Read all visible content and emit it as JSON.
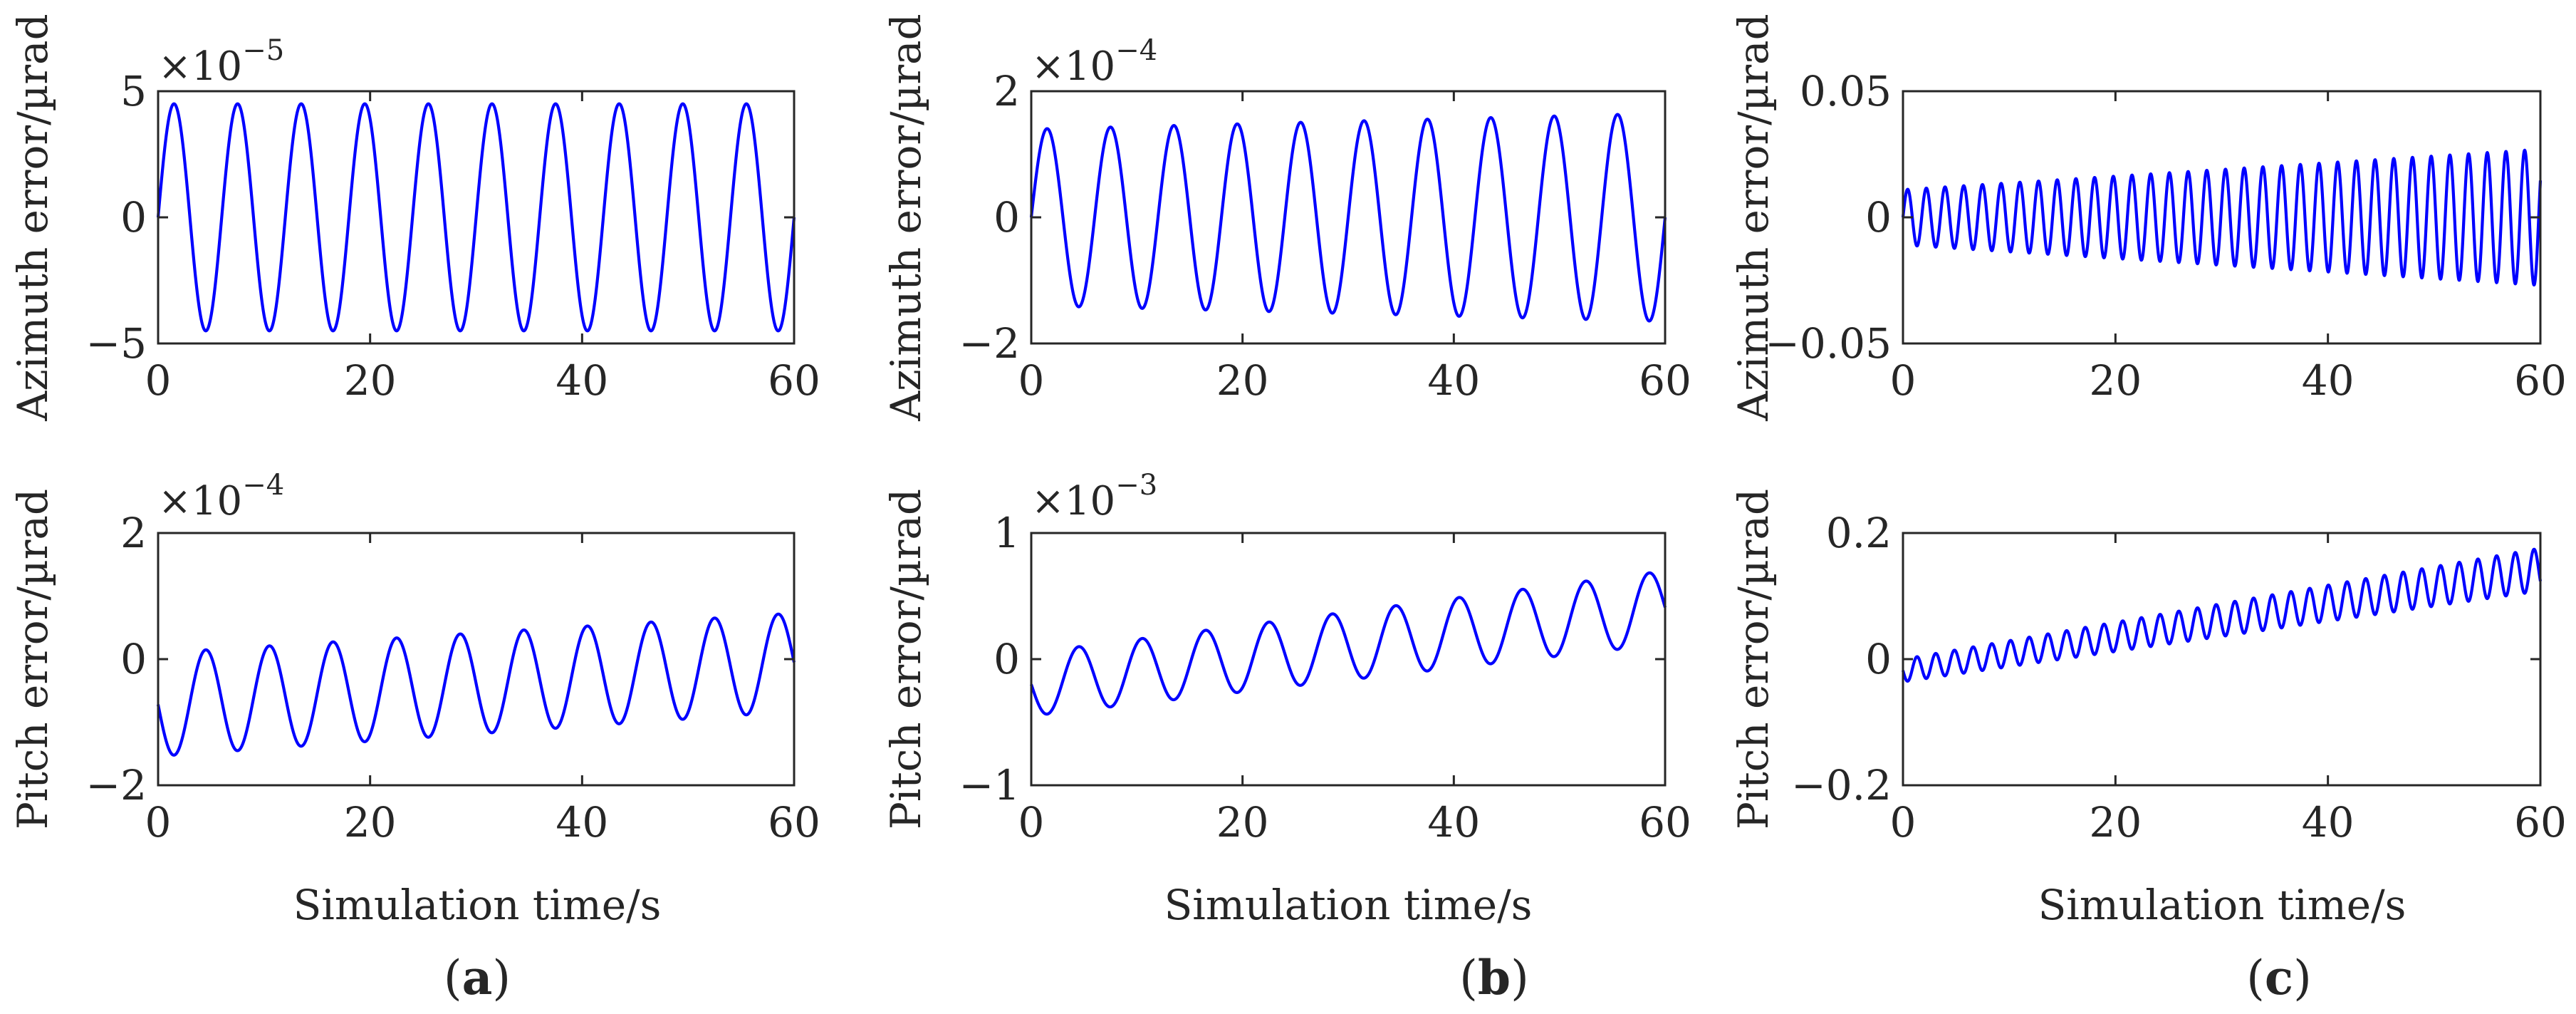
{
  "figure": {
    "xlabel": "Simulation time/s",
    "panels": [
      {
        "label": "(a)",
        "open": "(",
        "letter": "a",
        "close": ")"
      },
      {
        "label": "(b)",
        "open": "(",
        "letter": "b",
        "close": ")"
      },
      {
        "label": "(c)",
        "open": "(",
        "letter": "c",
        "close": ")"
      }
    ]
  },
  "chart_data": [
    {
      "id": "a-top",
      "type": "line",
      "panel": "a",
      "ylabel": "Azimuth error/µrad",
      "xlabel": "",
      "scale_base": "×10",
      "scale_exp": "−5",
      "xlim": [
        0,
        60
      ],
      "ylim": [
        -5,
        5
      ],
      "xticks": [
        0,
        20,
        40,
        60
      ],
      "xtick_labels": [
        "0",
        "20",
        "40",
        "60"
      ],
      "yticks": [
        -5,
        0,
        5
      ],
      "ytick_labels": [
        "−5",
        "0",
        "5"
      ],
      "series": [
        {
          "name": "error",
          "color": "#0000ff",
          "model": "sine",
          "amp_start": 4.5,
          "amp_end": 4.5,
          "offset_start": 0,
          "offset_end": 0,
          "period": 6.0,
          "phase": 0,
          "sign": 1
        }
      ]
    },
    {
      "id": "a-bottom",
      "type": "line",
      "panel": "a",
      "ylabel": "Pitch error/µrad",
      "xlabel": "Simulation time/s",
      "scale_base": "×10",
      "scale_exp": "−4",
      "xlim": [
        0,
        60
      ],
      "ylim": [
        -2,
        2
      ],
      "xticks": [
        0,
        20,
        40,
        60
      ],
      "xtick_labels": [
        "0",
        "20",
        "40",
        "60"
      ],
      "yticks": [
        -2,
        0,
        2
      ],
      "ytick_labels": [
        "−2",
        "0",
        "2"
      ],
      "series": [
        {
          "name": "error",
          "color": "#0000ff",
          "model": "sine",
          "amp_start": 0.82,
          "amp_end": 0.78,
          "offset_start": -0.72,
          "offset_end": -0.05,
          "period": 6.0,
          "phase": 0,
          "sign": -1
        }
      ]
    },
    {
      "id": "b-top",
      "type": "line",
      "panel": "b",
      "ylabel": "Azimuth error/µrad",
      "xlabel": "",
      "scale_base": "×10",
      "scale_exp": "−4",
      "xlim": [
        0,
        60
      ],
      "ylim": [
        -2,
        2
      ],
      "xticks": [
        0,
        20,
        40,
        60
      ],
      "xtick_labels": [
        "0",
        "20",
        "40",
        "60"
      ],
      "yticks": [
        -2,
        0,
        2
      ],
      "ytick_labels": [
        "−2",
        "0",
        "2"
      ],
      "series": [
        {
          "name": "error",
          "color": "#0000ff",
          "model": "sine",
          "amp_start": 1.4,
          "amp_end": 1.65,
          "offset_start": 0,
          "offset_end": 0,
          "period": 6.0,
          "phase": 0,
          "sign": 1
        }
      ]
    },
    {
      "id": "b-bottom",
      "type": "line",
      "panel": "b",
      "ylabel": "Pitch error/µrad",
      "xlabel": "Simulation time/s",
      "scale_base": "×10",
      "scale_exp": "−3",
      "xlim": [
        0,
        60
      ],
      "ylim": [
        -1,
        1
      ],
      "xticks": [
        0,
        20,
        40,
        60
      ],
      "xtick_labels": [
        "0",
        "20",
        "40",
        "60"
      ],
      "yticks": [
        -1,
        0,
        1
      ],
      "ytick_labels": [
        "−1",
        "0",
        "1"
      ],
      "series": [
        {
          "name": "error",
          "color": "#0000ff",
          "model": "sine",
          "amp_start": 0.25,
          "amp_end": 0.29,
          "offset_start": -0.2,
          "offset_end": 0.41,
          "period": 6.0,
          "phase": 0,
          "sign": -1
        }
      ]
    },
    {
      "id": "c-top",
      "type": "line",
      "panel": "c",
      "ylabel": "Azimuth error/µrad",
      "xlabel": "",
      "scale_base": "",
      "scale_exp": "",
      "xlim": [
        0,
        60
      ],
      "ylim": [
        -0.05,
        0.05
      ],
      "xticks": [
        0,
        20,
        40,
        60
      ],
      "xtick_labels": [
        "0",
        "20",
        "40",
        "60"
      ],
      "yticks": [
        -0.05,
        0,
        0.05
      ],
      "ytick_labels": [
        "−0.05",
        "0",
        "0.05"
      ],
      "series": [
        {
          "name": "error",
          "color": "#0000ff",
          "model": "sine",
          "amp_start": 0.011,
          "amp_end": 0.027,
          "offset_start": 0,
          "offset_end": 0,
          "period": 1.76,
          "phase": 0,
          "sign": 1
        }
      ]
    },
    {
      "id": "c-bottom",
      "type": "line",
      "panel": "c",
      "ylabel": "Pitch error/µrad",
      "xlabel": "Simulation time/s",
      "scale_base": "",
      "scale_exp": "",
      "xlim": [
        0,
        60
      ],
      "ylim": [
        -0.2,
        0.2
      ],
      "xticks": [
        0,
        20,
        40,
        60
      ],
      "xtick_labels": [
        "0",
        "20",
        "40",
        "60"
      ],
      "yticks": [
        -0.2,
        0,
        0.2
      ],
      "ytick_labels": [
        "−0.2",
        "0",
        "0.2"
      ],
      "series": [
        {
          "name": "error",
          "color": "#0000ff",
          "model": "sine",
          "amp_start": 0.018,
          "amp_end": 0.034,
          "offset_start": -0.018,
          "offset_end": 0.142,
          "period": 1.76,
          "phase": 0,
          "sign": -1
        }
      ]
    }
  ]
}
